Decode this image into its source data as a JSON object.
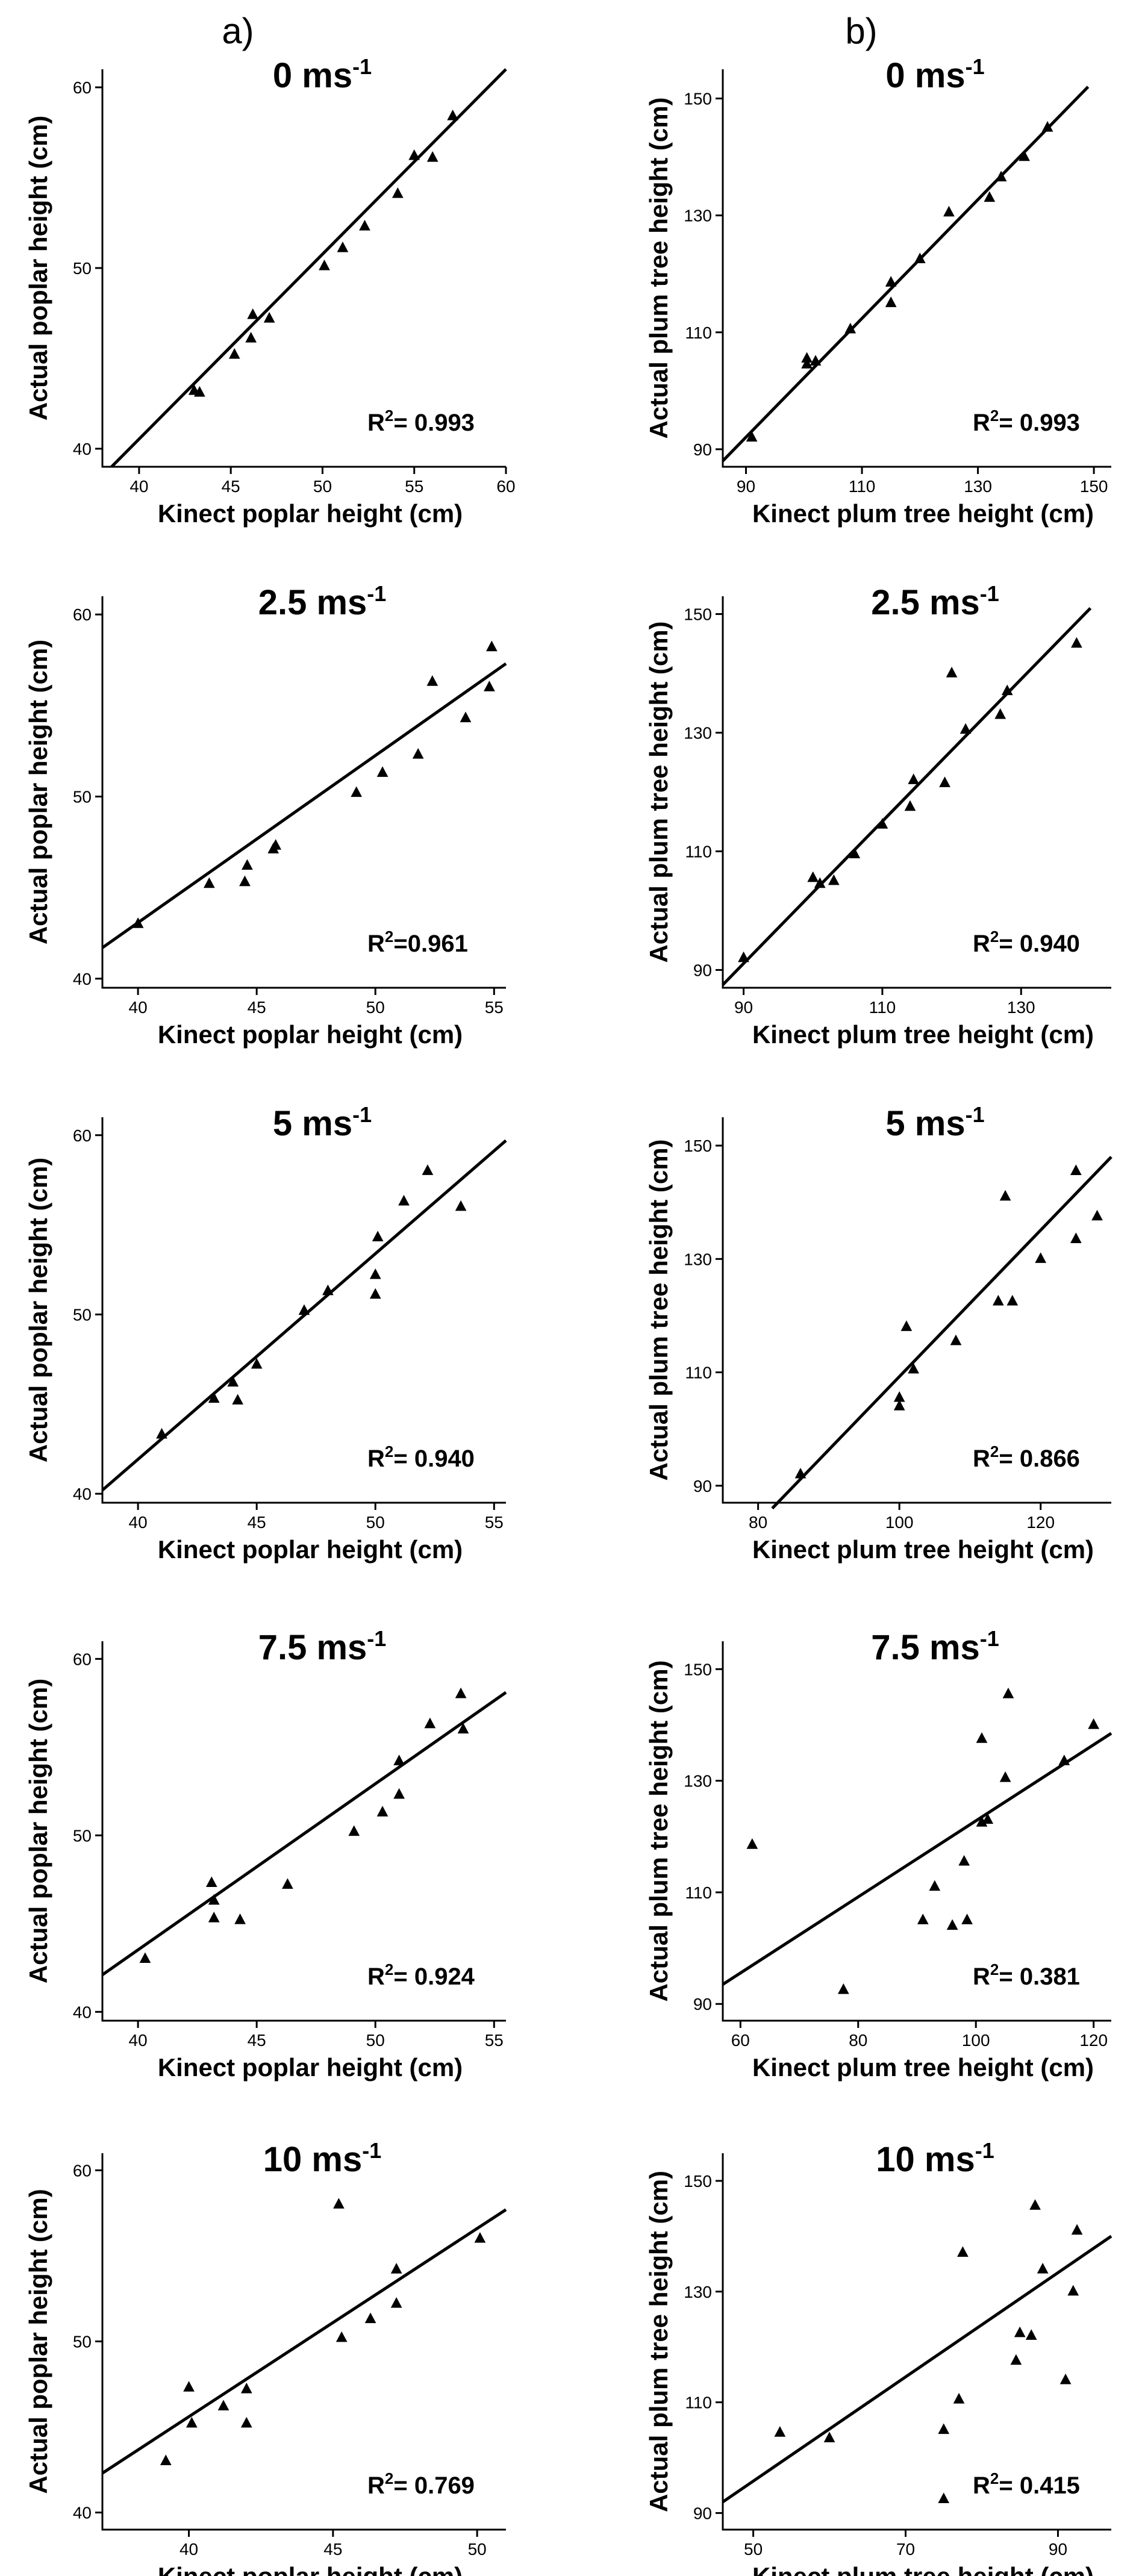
{
  "figure": {
    "column_letters": [
      "a)",
      "b)"
    ]
  },
  "chart_data": [
    {
      "type": "scatter",
      "column": 0,
      "row": 0,
      "title": "0 ms",
      "title_superscript": "-1",
      "xlabel": "Kinect poplar height (cm)",
      "ylabel": "Actual poplar height (cm)",
      "xlim": [
        38,
        60
      ],
      "ylim": [
        39,
        61
      ],
      "xticks": [
        40,
        45,
        50,
        55,
        60
      ],
      "yticks": [
        40,
        50,
        60
      ],
      "r2_label": "R",
      "r2_text": "= 0.993",
      "fit": {
        "x": [
          38.5,
          60
        ],
        "y": [
          39,
          61
        ]
      },
      "points": [
        [
          43.0,
          43.2
        ],
        [
          43.3,
          43.1
        ],
        [
          45.2,
          45.2
        ],
        [
          46.1,
          46.1
        ],
        [
          46.2,
          47.4
        ],
        [
          47.1,
          47.2
        ],
        [
          50.1,
          50.1
        ],
        [
          51.1,
          51.1
        ],
        [
          52.3,
          52.3
        ],
        [
          54.1,
          54.1
        ],
        [
          55.0,
          56.2
        ],
        [
          56.0,
          56.1
        ],
        [
          57.1,
          58.4
        ]
      ]
    },
    {
      "type": "scatter",
      "column": 1,
      "row": 0,
      "title": "0 ms",
      "title_superscript": "-1",
      "xlabel": "Kinect plum tree height (cm)",
      "ylabel": "Actual plum tree height (cm)",
      "xlim": [
        86,
        153
      ],
      "ylim": [
        87,
        155
      ],
      "xticks": [
        90,
        110,
        130,
        150
      ],
      "yticks": [
        90,
        110,
        130,
        150
      ],
      "r2_label": "R",
      "r2_text": "= 0.993",
      "fit": {
        "x": [
          86,
          149
        ],
        "y": [
          88,
          152
        ]
      },
      "points": [
        [
          91,
          92
        ],
        [
          100.5,
          104.5
        ],
        [
          100.5,
          105.5
        ],
        [
          102,
          105
        ],
        [
          108,
          110.5
        ],
        [
          115,
          115
        ],
        [
          115,
          118.5
        ],
        [
          120,
          122.5
        ],
        [
          125,
          130.5
        ],
        [
          132,
          133
        ],
        [
          134,
          136.5
        ],
        [
          138,
          140
        ],
        [
          142,
          145
        ]
      ]
    },
    {
      "type": "scatter",
      "column": 0,
      "row": 1,
      "title": "2.5 ms",
      "title_superscript": "-1",
      "xlabel": "Kinect poplar height (cm)",
      "ylabel": "Actual poplar height (cm)",
      "xlim": [
        38.5,
        55.5
      ],
      "ylim": [
        39.5,
        61
      ],
      "xticks": [
        40,
        45,
        50,
        55
      ],
      "yticks": [
        40,
        50,
        60
      ],
      "r2_label": "R",
      "r2_text": "=0.961",
      "fit": {
        "x": [
          38.5,
          55.5
        ],
        "y": [
          41.7,
          57.3
        ]
      },
      "points": [
        [
          40.0,
          43.0
        ],
        [
          43.0,
          45.2
        ],
        [
          44.5,
          45.3
        ],
        [
          44.6,
          46.2
        ],
        [
          45.7,
          47.1
        ],
        [
          45.8,
          47.3
        ],
        [
          49.2,
          50.2
        ],
        [
          50.3,
          51.3
        ],
        [
          51.8,
          52.3
        ],
        [
          52.4,
          56.3
        ],
        [
          53.8,
          54.3
        ],
        [
          54.8,
          56.0
        ],
        [
          54.9,
          58.2
        ]
      ]
    },
    {
      "type": "scatter",
      "column": 1,
      "row": 1,
      "title": "2.5 ms",
      "title_superscript": "-1",
      "xlabel": "Kinect plum tree height (cm)",
      "ylabel": "Actual plum tree height (cm)",
      "xlim": [
        87,
        143
      ],
      "ylim": [
        87,
        153
      ],
      "xticks": [
        90,
        110,
        130
      ],
      "yticks": [
        90,
        110,
        130,
        150
      ],
      "r2_label": "R",
      "r2_text": "= 0.940",
      "fit": {
        "x": [
          87,
          140
        ],
        "y": [
          87.5,
          151
        ]
      },
      "points": [
        [
          90,
          92
        ],
        [
          100,
          105.5
        ],
        [
          101,
          104.5
        ],
        [
          103,
          105
        ],
        [
          106,
          109.5
        ],
        [
          110,
          114.5
        ],
        [
          114,
          117.5
        ],
        [
          114.5,
          122
        ],
        [
          119,
          121.5
        ],
        [
          120,
          140
        ],
        [
          122,
          130.5
        ],
        [
          127,
          133
        ],
        [
          128,
          137
        ],
        [
          138,
          145
        ]
      ]
    },
    {
      "type": "scatter",
      "column": 0,
      "row": 2,
      "title": "5 ms",
      "title_superscript": "-1",
      "xlabel": "Kinect poplar height (cm)",
      "ylabel": "Actual poplar height (cm)",
      "xlim": [
        38.5,
        55.5
      ],
      "ylim": [
        39.5,
        61
      ],
      "xticks": [
        40,
        45,
        50,
        55
      ],
      "yticks": [
        40,
        50,
        60
      ],
      "r2_label": "R",
      "r2_text": "= 0.940",
      "fit": {
        "x": [
          38.5,
          55.5
        ],
        "y": [
          40.2,
          59.7
        ]
      },
      "points": [
        [
          41.0,
          43.3
        ],
        [
          43.2,
          45.3
        ],
        [
          44.0,
          46.2
        ],
        [
          44.2,
          45.2
        ],
        [
          45.0,
          47.2
        ],
        [
          47.0,
          50.2
        ],
        [
          48.0,
          51.3
        ],
        [
          50.0,
          51.1
        ],
        [
          50.0,
          52.2
        ],
        [
          50.1,
          54.3
        ],
        [
          51.2,
          56.3
        ],
        [
          52.2,
          58.0
        ],
        [
          53.6,
          56.0
        ]
      ]
    },
    {
      "type": "scatter",
      "column": 1,
      "row": 2,
      "title": "5 ms",
      "title_superscript": "-1",
      "xlabel": "Kinect plum tree height (cm)",
      "ylabel": "Actual plum tree height (cm)",
      "xlim": [
        75,
        130
      ],
      "ylim": [
        87,
        155
      ],
      "xticks": [
        80,
        100,
        120
      ],
      "yticks": [
        90,
        110,
        130,
        150
      ],
      "r2_label": "R",
      "r2_text": "= 0.866",
      "fit": {
        "x": [
          82,
          130
        ],
        "y": [
          86,
          148
        ]
      },
      "points": [
        [
          86,
          92
        ],
        [
          100,
          104
        ],
        [
          100,
          105.5
        ],
        [
          101,
          118
        ],
        [
          102,
          110.5
        ],
        [
          108,
          115.5
        ],
        [
          114,
          122.5
        ],
        [
          115,
          141
        ],
        [
          116,
          122.5
        ],
        [
          120,
          130
        ],
        [
          125,
          145.5
        ],
        [
          125,
          133.5
        ],
        [
          128,
          137.5
        ]
      ]
    },
    {
      "type": "scatter",
      "column": 0,
      "row": 3,
      "title": "7.5 ms",
      "title_superscript": "-1",
      "xlabel": "Kinect poplar height (cm)",
      "ylabel": "Actual poplar height (cm)",
      "xlim": [
        38.5,
        55.5
      ],
      "ylim": [
        39.5,
        61
      ],
      "xticks": [
        40,
        45,
        50,
        55
      ],
      "yticks": [
        40,
        50,
        60
      ],
      "r2_label": "R",
      "r2_text": "= 0.924",
      "fit": {
        "x": [
          38.5,
          55.5
        ],
        "y": [
          42.1,
          58.1
        ]
      },
      "points": [
        [
          40.3,
          43.0
        ],
        [
          43.1,
          47.3
        ],
        [
          43.2,
          46.3
        ],
        [
          43.2,
          45.3
        ],
        [
          44.3,
          45.2
        ],
        [
          46.3,
          47.2
        ],
        [
          49.1,
          50.2
        ],
        [
          50.3,
          51.3
        ],
        [
          51.0,
          52.3
        ],
        [
          51.0,
          54.2
        ],
        [
          52.3,
          56.3
        ],
        [
          53.6,
          58.0
        ],
        [
          53.7,
          56.0
        ]
      ]
    },
    {
      "type": "scatter",
      "column": 1,
      "row": 3,
      "title": "7.5 ms",
      "title_superscript": "-1",
      "xlabel": "Kinect plum tree height (cm)",
      "ylabel": "Actual plum tree height (cm)",
      "xlim": [
        57,
        123
      ],
      "ylim": [
        87,
        155
      ],
      "xticks": [
        60,
        80,
        100,
        120
      ],
      "yticks": [
        90,
        110,
        130,
        150
      ],
      "r2_label": "R",
      "r2_text": "= 0.381",
      "fit": {
        "x": [
          57,
          123
        ],
        "y": [
          93.5,
          138.5
        ]
      },
      "points": [
        [
          62,
          118.5
        ],
        [
          77.5,
          92.5
        ],
        [
          91,
          105
        ],
        [
          93,
          111
        ],
        [
          96,
          104
        ],
        [
          98,
          115.5
        ],
        [
          98.5,
          105
        ],
        [
          101,
          122.5
        ],
        [
          101,
          137.5
        ],
        [
          102,
          123
        ],
        [
          105,
          130.5
        ],
        [
          105.5,
          145.5
        ],
        [
          115,
          133.5
        ],
        [
          120,
          140
        ]
      ]
    },
    {
      "type": "scatter",
      "column": 0,
      "row": 4,
      "title": "10 ms",
      "title_superscript": "-1",
      "xlabel": "Kinect poplar height (cm)",
      "ylabel": "Actual poplar height (cm)",
      "xlim": [
        37,
        51
      ],
      "ylim": [
        39,
        61
      ],
      "xticks": [
        40,
        45,
        50
      ],
      "yticks": [
        40,
        50,
        60
      ],
      "r2_label": "R",
      "r2_text": "= 0.769",
      "fit": {
        "x": [
          37,
          51
        ],
        "y": [
          42.3,
          57.7
        ]
      },
      "points": [
        [
          39.2,
          43.0
        ],
        [
          40.0,
          47.3
        ],
        [
          40.1,
          45.2
        ],
        [
          41.2,
          46.2
        ],
        [
          42.0,
          47.2
        ],
        [
          42.0,
          45.2
        ],
        [
          45.2,
          58.0
        ],
        [
          45.3,
          50.2
        ],
        [
          46.3,
          51.3
        ],
        [
          47.2,
          52.2
        ],
        [
          47.2,
          54.2
        ],
        [
          50.1,
          56.0
        ]
      ]
    },
    {
      "type": "scatter",
      "column": 1,
      "row": 4,
      "title": "10 ms",
      "title_superscript": "-1",
      "xlabel": "Kinect plum tree height (cm)",
      "ylabel": "Actual plum tree height (cm)",
      "xlim": [
        46,
        97
      ],
      "ylim": [
        87,
        155
      ],
      "xticks": [
        50,
        70,
        90
      ],
      "yticks": [
        90,
        110,
        130,
        150
      ],
      "r2_label": "R",
      "r2_text": "= 0.415",
      "fit": {
        "x": [
          46,
          97
        ],
        "y": [
          92,
          140
        ]
      },
      "points": [
        [
          53.5,
          104.5
        ],
        [
          60,
          103.5
        ],
        [
          75,
          92.5
        ],
        [
          75,
          105
        ],
        [
          77,
          110.5
        ],
        [
          77.5,
          137
        ],
        [
          84.5,
          117.5
        ],
        [
          85,
          122.5
        ],
        [
          86.5,
          122
        ],
        [
          87,
          145.5
        ],
        [
          88,
          134
        ],
        [
          91,
          114
        ],
        [
          92,
          130
        ],
        [
          92.5,
          141
        ]
      ]
    }
  ]
}
